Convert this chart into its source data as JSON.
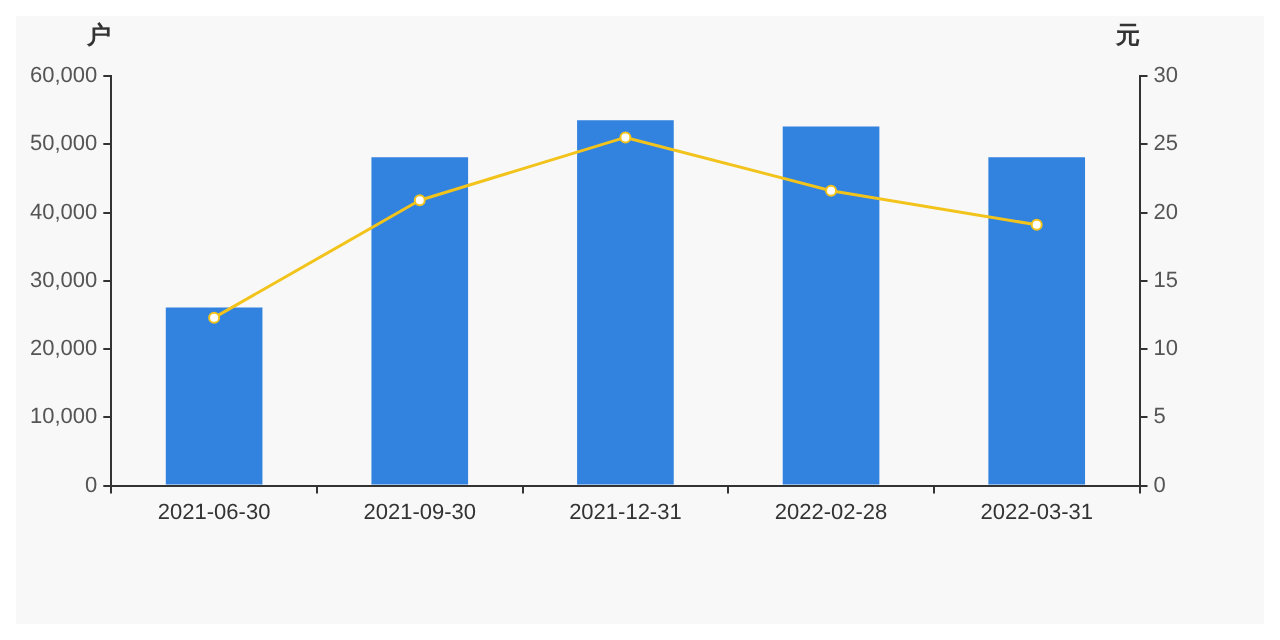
{
  "chart_data": {
    "type": "bar",
    "ylabel": "户",
    "y2label": "元",
    "categories": [
      "2021-06-30",
      "2021-09-30",
      "2021-12-31",
      "2022-02-28",
      "2022-03-31"
    ],
    "series": [
      {
        "color": "#3282e0",
        "values": [
          26100,
          48100,
          53500,
          52600,
          48100
        ]
      },
      {
        "type": "line",
        "axis": "y2",
        "color": "#f2c31b",
        "marker": "circle",
        "values": [
          12.3,
          20.9,
          25.5,
          21.6,
          19.1
        ]
      }
    ],
    "ylim": [
      0,
      60000
    ],
    "yticks": [
      0,
      {
        "value": 10000,
        "label": "10,000"
      },
      {
        "value": 20000,
        "label": "20,000"
      },
      {
        "value": 30000,
        "label": "30,000"
      },
      {
        "value": 40000,
        "label": "40,000"
      },
      {
        "value": 50000,
        "label": "50,000"
      },
      {
        "value": 60000,
        "label": "60,000"
      }
    ],
    "y2lim": [
      0,
      30
    ],
    "y2ticks": [
      0,
      5,
      10,
      15,
      20,
      25,
      30
    ]
  }
}
